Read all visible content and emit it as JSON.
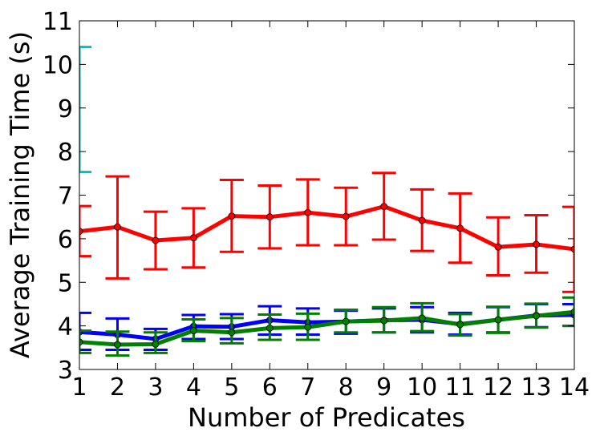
{
  "chart_data": {
    "type": "line",
    "title": "",
    "xlabel": "Number of Predicates",
    "ylabel": "Average Training Time (s)",
    "xlim": [
      1,
      14
    ],
    "ylim": [
      3,
      11
    ],
    "xticks": [
      1,
      2,
      3,
      4,
      5,
      6,
      7,
      8,
      9,
      10,
      11,
      12,
      13,
      14
    ],
    "yticks": [
      3,
      4,
      5,
      6,
      7,
      8,
      9,
      10,
      11
    ],
    "grid": false,
    "legend": "none",
    "series": [
      {
        "color": "#ff0000",
        "marker": true,
        "x": [
          1,
          2,
          3,
          4,
          5,
          6,
          7,
          8,
          9,
          10,
          11,
          12,
          13,
          14
        ],
        "y": [
          6.17,
          6.27,
          5.96,
          6.02,
          6.52,
          6.5,
          6.6,
          6.51,
          6.74,
          6.42,
          6.24,
          5.81,
          5.87,
          5.76
        ],
        "err_low": [
          5.6,
          5.09,
          5.3,
          5.34,
          5.7,
          5.78,
          5.85,
          5.85,
          5.98,
          5.72,
          5.45,
          5.16,
          5.22,
          4.78
        ],
        "err_high": [
          6.75,
          7.43,
          6.62,
          6.7,
          7.35,
          7.22,
          7.36,
          7.17,
          7.51,
          7.13,
          7.04,
          6.49,
          6.54,
          6.73
        ]
      },
      {
        "color": "#0000ff",
        "marker": true,
        "x": [
          1,
          2,
          3,
          4,
          5,
          6,
          7,
          8,
          9,
          10,
          11,
          12,
          13,
          14
        ],
        "y": [
          3.86,
          3.8,
          3.7,
          3.99,
          3.98,
          4.13,
          4.08,
          4.1,
          4.13,
          4.14,
          4.04,
          4.14,
          4.24,
          4.25
        ],
        "err_low": [
          3.45,
          3.45,
          3.45,
          3.7,
          3.7,
          3.8,
          3.8,
          3.82,
          3.85,
          3.85,
          3.8,
          3.85,
          3.97,
          4.0
        ],
        "err_high": [
          4.3,
          4.17,
          3.93,
          4.25,
          4.27,
          4.45,
          4.4,
          4.35,
          4.4,
          4.43,
          4.3,
          4.43,
          4.5,
          4.5
        ]
      },
      {
        "color": "#008000",
        "marker": true,
        "x": [
          1,
          2,
          3,
          4,
          5,
          6,
          7,
          8,
          9,
          10,
          11,
          12,
          13,
          14
        ],
        "y": [
          3.63,
          3.57,
          3.58,
          3.89,
          3.85,
          3.95,
          3.97,
          4.1,
          4.12,
          4.18,
          4.03,
          4.14,
          4.23,
          4.32
        ],
        "err_low": [
          3.38,
          3.32,
          3.38,
          3.65,
          3.6,
          3.68,
          3.68,
          3.85,
          3.85,
          3.88,
          3.78,
          3.84,
          3.96,
          4.0
        ],
        "err_high": [
          3.89,
          3.87,
          3.85,
          4.15,
          4.18,
          4.26,
          4.28,
          4.37,
          4.43,
          4.52,
          4.27,
          4.44,
          4.51,
          4.65
        ]
      },
      {
        "color": "#00bfbf",
        "marker": false,
        "x": [
          1
        ],
        "y": [
          8.97
        ],
        "err_low": [
          7.53
        ],
        "err_high": [
          10.4
        ]
      }
    ]
  }
}
